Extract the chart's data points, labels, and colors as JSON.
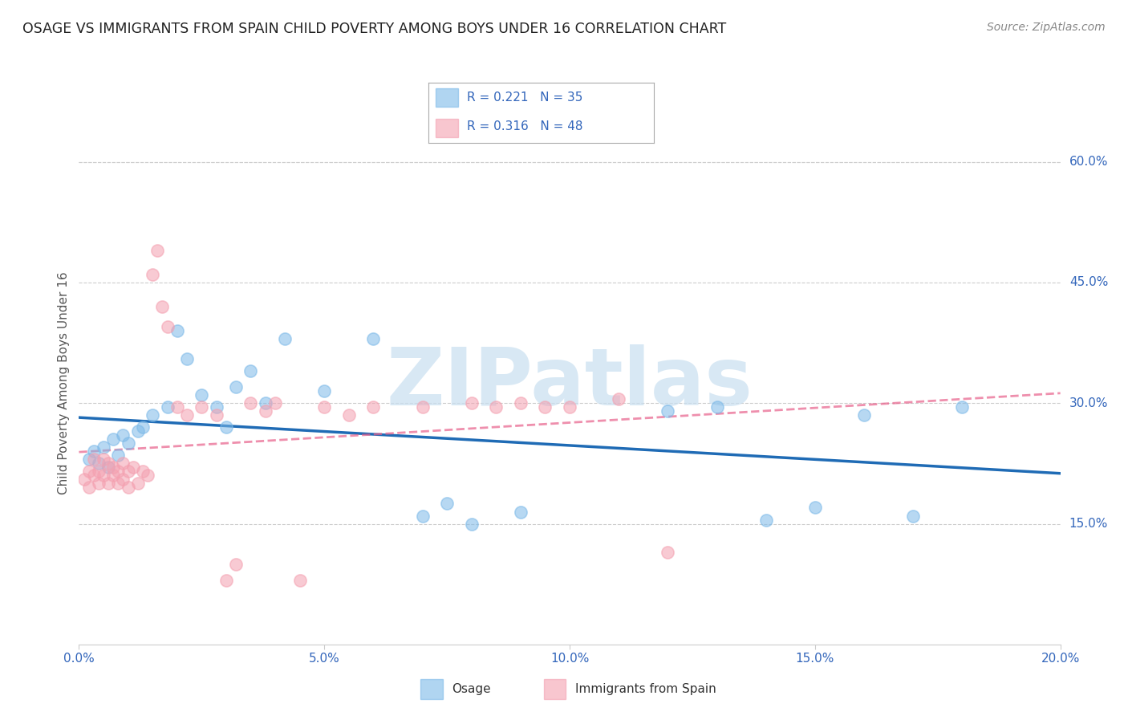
{
  "title": "OSAGE VS IMMIGRANTS FROM SPAIN CHILD POVERTY AMONG BOYS UNDER 16 CORRELATION CHART",
  "source": "Source: ZipAtlas.com",
  "ylabel": "Child Poverty Among Boys Under 16",
  "xlim": [
    0.0,
    0.2
  ],
  "ylim": [
    0.0,
    0.65
  ],
  "xticks": [
    0.0,
    0.05,
    0.1,
    0.15,
    0.2
  ],
  "xticklabels": [
    "0.0%",
    "5.0%",
    "10.0%",
    "15.0%",
    "20.0%"
  ],
  "yticks_right": [
    0.15,
    0.3,
    0.45,
    0.6
  ],
  "yticklabels_right": [
    "15.0%",
    "30.0%",
    "45.0%",
    "60.0%"
  ],
  "series1_name": "Osage",
  "series1_color": "#7cb9e8",
  "series1_line_color": "#1f6bb5",
  "series2_name": "Immigrants from Spain",
  "series2_color": "#f4a0b0",
  "series2_line_color": "#e8608a",
  "legend_text_color": "#3366bb",
  "legend_R_color": "#3366bb",
  "legend_N_color": "#3366bb",
  "watermark": "ZIPatlas",
  "watermark_color": "#c8dff0",
  "background_color": "#ffffff",
  "grid_color": "#cccccc",
  "title_color": "#222222",
  "axis_label_color": "#555555",
  "tick_color": "#3366bb",
  "osage_x": [
    0.002,
    0.003,
    0.004,
    0.005,
    0.006,
    0.007,
    0.008,
    0.009,
    0.01,
    0.012,
    0.013,
    0.015,
    0.018,
    0.02,
    0.022,
    0.025,
    0.028,
    0.03,
    0.032,
    0.035,
    0.038,
    0.042,
    0.05,
    0.06,
    0.07,
    0.075,
    0.08,
    0.09,
    0.12,
    0.13,
    0.14,
    0.15,
    0.16,
    0.17,
    0.18
  ],
  "osage_y": [
    0.23,
    0.24,
    0.225,
    0.245,
    0.22,
    0.255,
    0.235,
    0.26,
    0.25,
    0.265,
    0.27,
    0.285,
    0.295,
    0.39,
    0.355,
    0.31,
    0.295,
    0.27,
    0.32,
    0.34,
    0.3,
    0.38,
    0.315,
    0.38,
    0.16,
    0.175,
    0.15,
    0.165,
    0.29,
    0.295,
    0.155,
    0.17,
    0.285,
    0.16,
    0.295
  ],
  "spain_x": [
    0.001,
    0.002,
    0.002,
    0.003,
    0.003,
    0.004,
    0.004,
    0.005,
    0.005,
    0.006,
    0.006,
    0.007,
    0.007,
    0.008,
    0.008,
    0.009,
    0.009,
    0.01,
    0.01,
    0.011,
    0.012,
    0.013,
    0.014,
    0.015,
    0.016,
    0.017,
    0.018,
    0.02,
    0.022,
    0.025,
    0.028,
    0.03,
    0.032,
    0.035,
    0.038,
    0.04,
    0.045,
    0.05,
    0.055,
    0.06,
    0.07,
    0.08,
    0.085,
    0.09,
    0.095,
    0.1,
    0.11,
    0.12
  ],
  "spain_y": [
    0.205,
    0.215,
    0.195,
    0.21,
    0.23,
    0.215,
    0.2,
    0.21,
    0.23,
    0.2,
    0.225,
    0.21,
    0.22,
    0.2,
    0.215,
    0.225,
    0.205,
    0.195,
    0.215,
    0.22,
    0.2,
    0.215,
    0.21,
    0.46,
    0.49,
    0.42,
    0.395,
    0.295,
    0.285,
    0.295,
    0.285,
    0.08,
    0.1,
    0.3,
    0.29,
    0.3,
    0.08,
    0.295,
    0.285,
    0.295,
    0.295,
    0.3,
    0.295,
    0.3,
    0.295,
    0.295,
    0.305,
    0.115
  ]
}
